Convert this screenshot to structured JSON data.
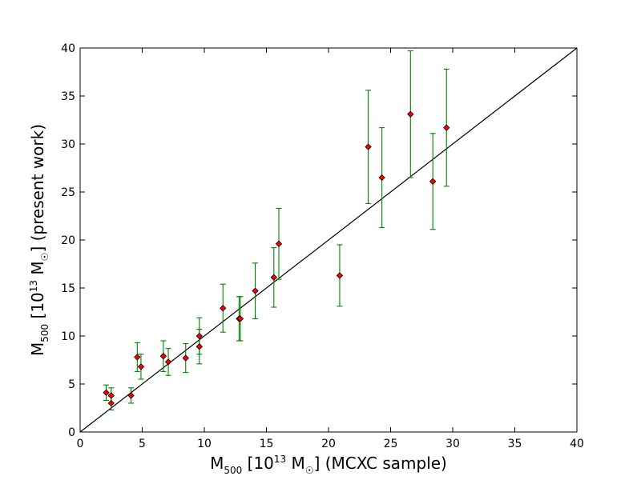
{
  "chart_data": {
    "type": "scatter",
    "title": "",
    "xlabel": {
      "main": "M",
      "sub": "500",
      "bracket_open": " [10",
      "power": "13",
      "unit": " M",
      "sun": "☉",
      "bracket_close": "]",
      "note": "  (MCXC sample)"
    },
    "ylabel": {
      "main": "M",
      "sub": "500",
      "bracket_open": " [10",
      "power": "13",
      "unit": " M",
      "sun": "☉",
      "bracket_close": "]",
      "note": "  (present work)"
    },
    "xlim": [
      0,
      40
    ],
    "ylim": [
      0,
      40
    ],
    "xticks": [
      "0",
      "5",
      "10",
      "15",
      "20",
      "25",
      "30",
      "35",
      "40"
    ],
    "yticks": [
      "0",
      "5",
      "10",
      "15",
      "20",
      "25",
      "30",
      "35",
      "40"
    ],
    "reference_line": {
      "from": [
        0,
        0
      ],
      "to": [
        40,
        40
      ]
    },
    "grid": false,
    "colors": {
      "marker": "#ff0000",
      "marker_edge": "#000000",
      "errorbar": "#008000",
      "line": "#000000"
    },
    "points": [
      {
        "x": 2.1,
        "y": 4.1,
        "err": 0.8
      },
      {
        "x": 2.5,
        "y": 3.8,
        "err": 0.8
      },
      {
        "x": 2.5,
        "y": 3.0,
        "err": 0.7
      },
      {
        "x": 4.1,
        "y": 3.8,
        "err": 0.8
      },
      {
        "x": 4.6,
        "y": 7.8,
        "err": 1.5
      },
      {
        "x": 4.9,
        "y": 6.8,
        "err": 1.3
      },
      {
        "x": 6.7,
        "y": 7.9,
        "err": 1.6
      },
      {
        "x": 7.1,
        "y": 7.3,
        "err": 1.4
      },
      {
        "x": 8.5,
        "y": 7.7,
        "err": 1.5
      },
      {
        "x": 9.6,
        "y": 8.9,
        "err": 1.8
      },
      {
        "x": 9.6,
        "y": 10.0,
        "err": 1.9
      },
      {
        "x": 11.5,
        "y": 12.9,
        "err": 2.5
      },
      {
        "x": 12.8,
        "y": 11.8,
        "err": 2.3
      },
      {
        "x": 12.9,
        "y": 11.8,
        "err": 2.3
      },
      {
        "x": 14.1,
        "y": 14.7,
        "err": 2.9
      },
      {
        "x": 15.6,
        "y": 16.1,
        "err": 3.1
      },
      {
        "x": 16.0,
        "y": 19.6,
        "err": 3.7
      },
      {
        "x": 20.9,
        "y": 16.3,
        "err": 3.2
      },
      {
        "x": 23.2,
        "y": 29.7,
        "err": 5.9
      },
      {
        "x": 24.3,
        "y": 26.5,
        "err": 5.2
      },
      {
        "x": 26.6,
        "y": 33.1,
        "err": 6.6
      },
      {
        "x": 28.4,
        "y": 26.1,
        "err": 5.0
      },
      {
        "x": 29.5,
        "y": 31.7,
        "err": 6.1
      }
    ]
  }
}
